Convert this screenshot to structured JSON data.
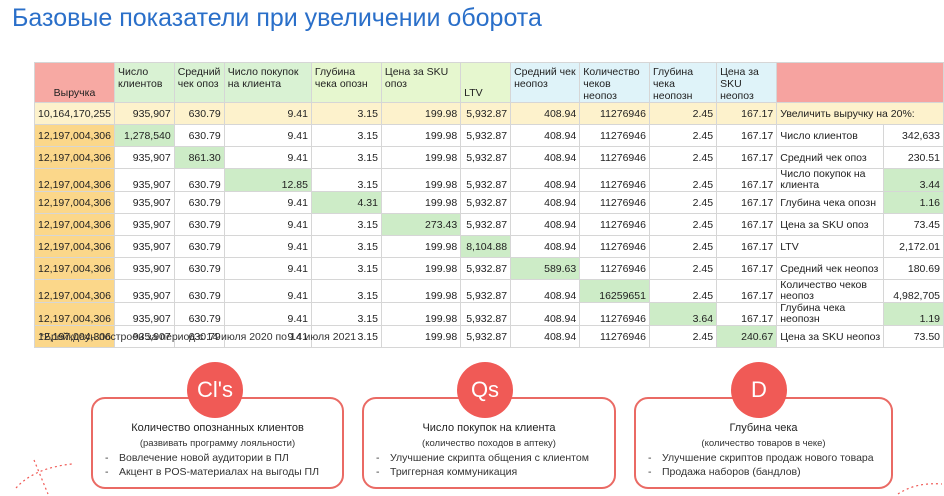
{
  "title": "Базовые показатели при увеличении оборота",
  "headers": [
    "Выручка",
    "Число клиентов",
    "Средний чек опоз",
    "Число покупок на клиента",
    "Глубина чека опозн",
    "Цена за SKU опоз",
    "LTV",
    "Средний чек неопоз",
    "Количество чеков неопоз",
    "Глубина чека неопозн",
    "Цена за SKU неопоз"
  ],
  "rows": [
    [
      "10,164,170,255",
      "935,907",
      "630.79",
      "9.41",
      "3.15",
      "199.98",
      "5,932.87",
      "408.94",
      "11276946",
      "2.45",
      "167.17"
    ],
    [
      "12,197,004,306",
      "1,278,540",
      "630.79",
      "9.41",
      "3.15",
      "199.98",
      "5,932.87",
      "408.94",
      "11276946",
      "2.45",
      "167.17"
    ],
    [
      "12,197,004,306",
      "935,907",
      "861.30",
      "9.41",
      "3.15",
      "199.98",
      "5,932.87",
      "408.94",
      "11276946",
      "2.45",
      "167.17"
    ],
    [
      "12,197,004,306",
      "935,907",
      "630.79",
      "12.85",
      "3.15",
      "199.98",
      "5,932.87",
      "408.94",
      "11276946",
      "2.45",
      "167.17"
    ],
    [
      "12,197,004,306",
      "935,907",
      "630.79",
      "9.41",
      "4.31",
      "199.98",
      "5,932.87",
      "408.94",
      "11276946",
      "2.45",
      "167.17"
    ],
    [
      "12,197,004,306",
      "935,907",
      "630.79",
      "9.41",
      "3.15",
      "273.43",
      "5,932.87",
      "408.94",
      "11276946",
      "2.45",
      "167.17"
    ],
    [
      "12,197,004,306",
      "935,907",
      "630.79",
      "9.41",
      "3.15",
      "199.98",
      "8,104.88",
      "408.94",
      "11276946",
      "2.45",
      "167.17"
    ],
    [
      "12,197,004,306",
      "935,907",
      "630.79",
      "9.41",
      "3.15",
      "199.98",
      "5,932.87",
      "589.63",
      "11276946",
      "2.45",
      "167.17"
    ],
    [
      "12,197,004,306",
      "935,907",
      "630.79",
      "9.41",
      "3.15",
      "199.98",
      "5,932.87",
      "408.94",
      "16259651",
      "2.45",
      "167.17"
    ],
    [
      "12,197,004,306",
      "935,907",
      "630.79",
      "9.41",
      "3.15",
      "199.98",
      "5,932.87",
      "408.94",
      "11276946",
      "3.64",
      "167.17"
    ],
    [
      "12,197,004,306",
      "935,907",
      "630.79",
      "9.41",
      "3.15",
      "199.98",
      "5,932.87",
      "408.94",
      "11276946",
      "2.45",
      "240.67"
    ]
  ],
  "side_header": "Увеличить выручку на 20%:",
  "side": [
    {
      "label": "Число клиентов",
      "value": "342,633"
    },
    {
      "label": "Средний чек опоз",
      "value": "230.51"
    },
    {
      "label": "Число покупок на клиента",
      "value": "3.44"
    },
    {
      "label": "Глубина чека опозн",
      "value": "1.16"
    },
    {
      "label": "Цена за SKU опоз",
      "value": "73.45"
    },
    {
      "label": "LTV",
      "value": "2,172.01"
    },
    {
      "label": "Средний чек неопоз",
      "value": "180.69"
    },
    {
      "label": "Количество чеков неопоз",
      "value": "4,982,705"
    },
    {
      "label": "Глубина чека неопозн",
      "value": "1.19"
    },
    {
      "label": "Цена за SKU неопоз",
      "value": "73.50"
    }
  ],
  "footnote": "*Брейкдаун построен за период с 14 июля 2020 по 14 июля 2021",
  "cards": [
    {
      "badge": "Cl's",
      "title": "Количество опознанных клиентов",
      "subtitle": "(развивать программу лояльности)",
      "items": [
        "Вовлечение новой аудитории в ПЛ",
        "Акцент в POS-материалах на выгоды ПЛ"
      ]
    },
    {
      "badge": "Qs",
      "title": "Число покупок на клиента",
      "subtitle": "(количество походов в аптеку)",
      "items": [
        "Улучшение скрипта общения с клиентом",
        "Триггерная коммуникация"
      ]
    },
    {
      "badge": "D",
      "title": "Глубина чека",
      "subtitle": "(количество товаров в чеке)",
      "items": [
        "Улучшение скриптов продаж нового товара",
        "Продажа наборов (бандлов)"
      ]
    }
  ],
  "colors": {
    "title": "#2a6fc9",
    "accent": "#f05a56",
    "highlight": "#cdecc7",
    "revenue": "#fbd78a"
  }
}
